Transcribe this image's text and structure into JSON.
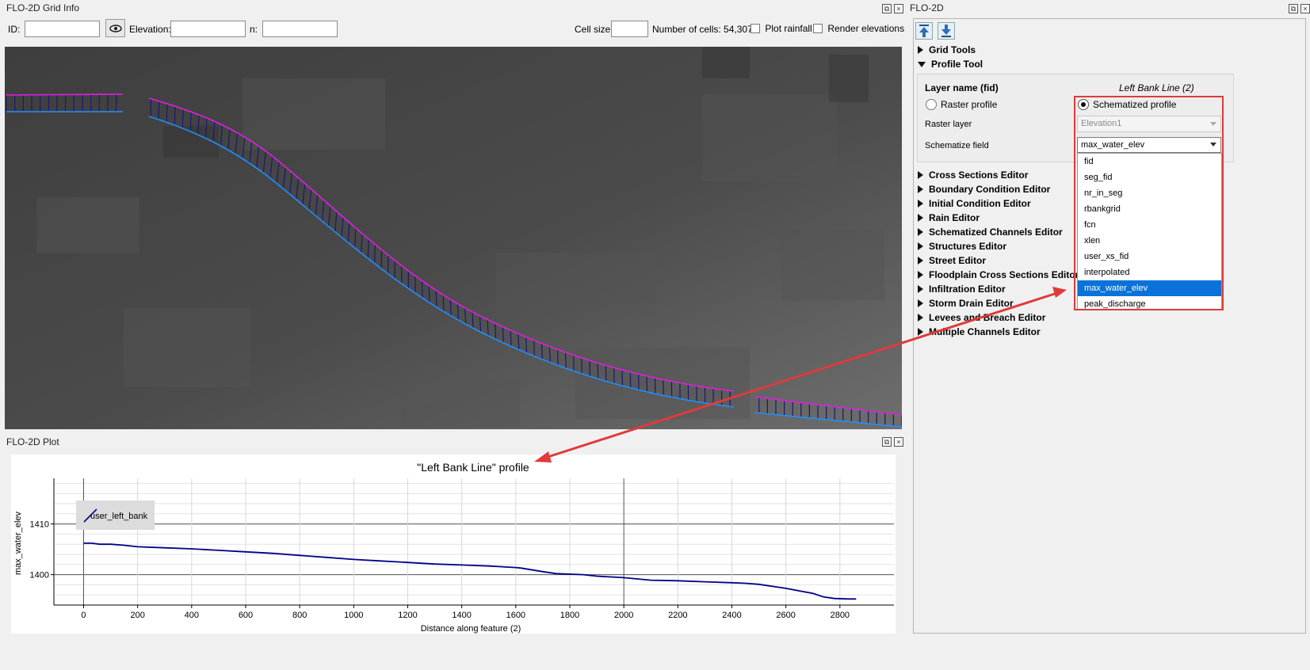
{
  "grid_info": {
    "title": "FLO-2D Grid Info",
    "id_label": "ID:",
    "id_value": "",
    "elevation_label": "Elevation:",
    "elevation_value": "",
    "n_label": "n:",
    "n_value": "",
    "cell_size_label": "Cell size:",
    "cell_size_value": "",
    "num_cells": "Number of cells: 54,307",
    "plot_rainfall": "Plot rainfall",
    "render_elevations": "Render elevations"
  },
  "plot_panel": {
    "title": "FLO-2D Plot"
  },
  "flo2d_panel": {
    "title": "FLO-2D",
    "grid_tools": "Grid Tools",
    "profile_tool": "Profile Tool",
    "layer_name_label": "Layer name (fid)",
    "layer_name_value": "Left Bank Line (2)",
    "raster_profile": "Raster profile",
    "schematized_profile": "Schematized profile",
    "raster_layer_label": "Raster layer",
    "raster_layer_value": "Elevation1",
    "schematize_field_label": "Schematize field",
    "schematize_field_value": "max_water_elev",
    "dropdown_options": [
      "fid",
      "seg_fid",
      "nr_in_seg",
      "rbankgrid",
      "fcn",
      "xlen",
      "user_xs_fid",
      "interpolated",
      "max_water_elev",
      "peak_discharge"
    ],
    "dropdown_selected_index": 8,
    "editors": [
      "Cross Sections Editor",
      "Boundary Condition Editor",
      "Initial Condition Editor",
      "Rain Editor",
      "Schematized Channels Editor",
      "Structures Editor",
      "Street Editor",
      "Floodplain Cross Sections Editor",
      "Infiltration Editor",
      "Storm Drain Editor",
      "Levees and Breach Editor",
      "Multiple Channels Editor"
    ]
  },
  "colors": {
    "accent": "#0a72d8",
    "highlight_box": "#e03a3a",
    "line": "#00008b",
    "map_bg": "#4c4c4c",
    "bank_magenta": "#e21ee2",
    "bank_blue": "#1e90ff"
  },
  "chart_data": {
    "type": "line",
    "title": "\"Left Bank Line\" profile",
    "xlabel": "Distance along feature (2)",
    "ylabel": "max_water_elev",
    "xlim": [
      -110,
      3000
    ],
    "ylim": [
      1394,
      1419
    ],
    "x_ticks": [
      0,
      200,
      400,
      600,
      800,
      1000,
      1200,
      1400,
      1600,
      1800,
      2000,
      2200,
      2400,
      2600,
      2800
    ],
    "y_ticks": [
      1400,
      1410
    ],
    "legend": "top-left",
    "series": [
      {
        "name": "user_left_bank",
        "x": [
          0,
          30,
          60,
          100,
          150,
          200,
          300,
          400,
          500,
          600,
          700,
          800,
          900,
          1000,
          1100,
          1200,
          1300,
          1400,
          1500,
          1600,
          1620,
          1700,
          1750,
          1850,
          1900,
          2000,
          2100,
          2200,
          2300,
          2400,
          2450,
          2500,
          2600,
          2700,
          2740,
          2780,
          2830,
          2860
        ],
        "y": [
          1406.2,
          1406.2,
          1406.0,
          1406.0,
          1405.8,
          1405.5,
          1405.3,
          1405.1,
          1404.8,
          1404.5,
          1404.2,
          1403.8,
          1403.4,
          1403.0,
          1402.7,
          1402.4,
          1402.1,
          1401.9,
          1401.7,
          1401.4,
          1401.3,
          1400.6,
          1400.2,
          1400.0,
          1399.7,
          1399.4,
          1398.9,
          1398.8,
          1398.6,
          1398.4,
          1398.3,
          1398.1,
          1397.3,
          1396.3,
          1395.6,
          1395.3,
          1395.2,
          1395.2
        ]
      }
    ]
  }
}
